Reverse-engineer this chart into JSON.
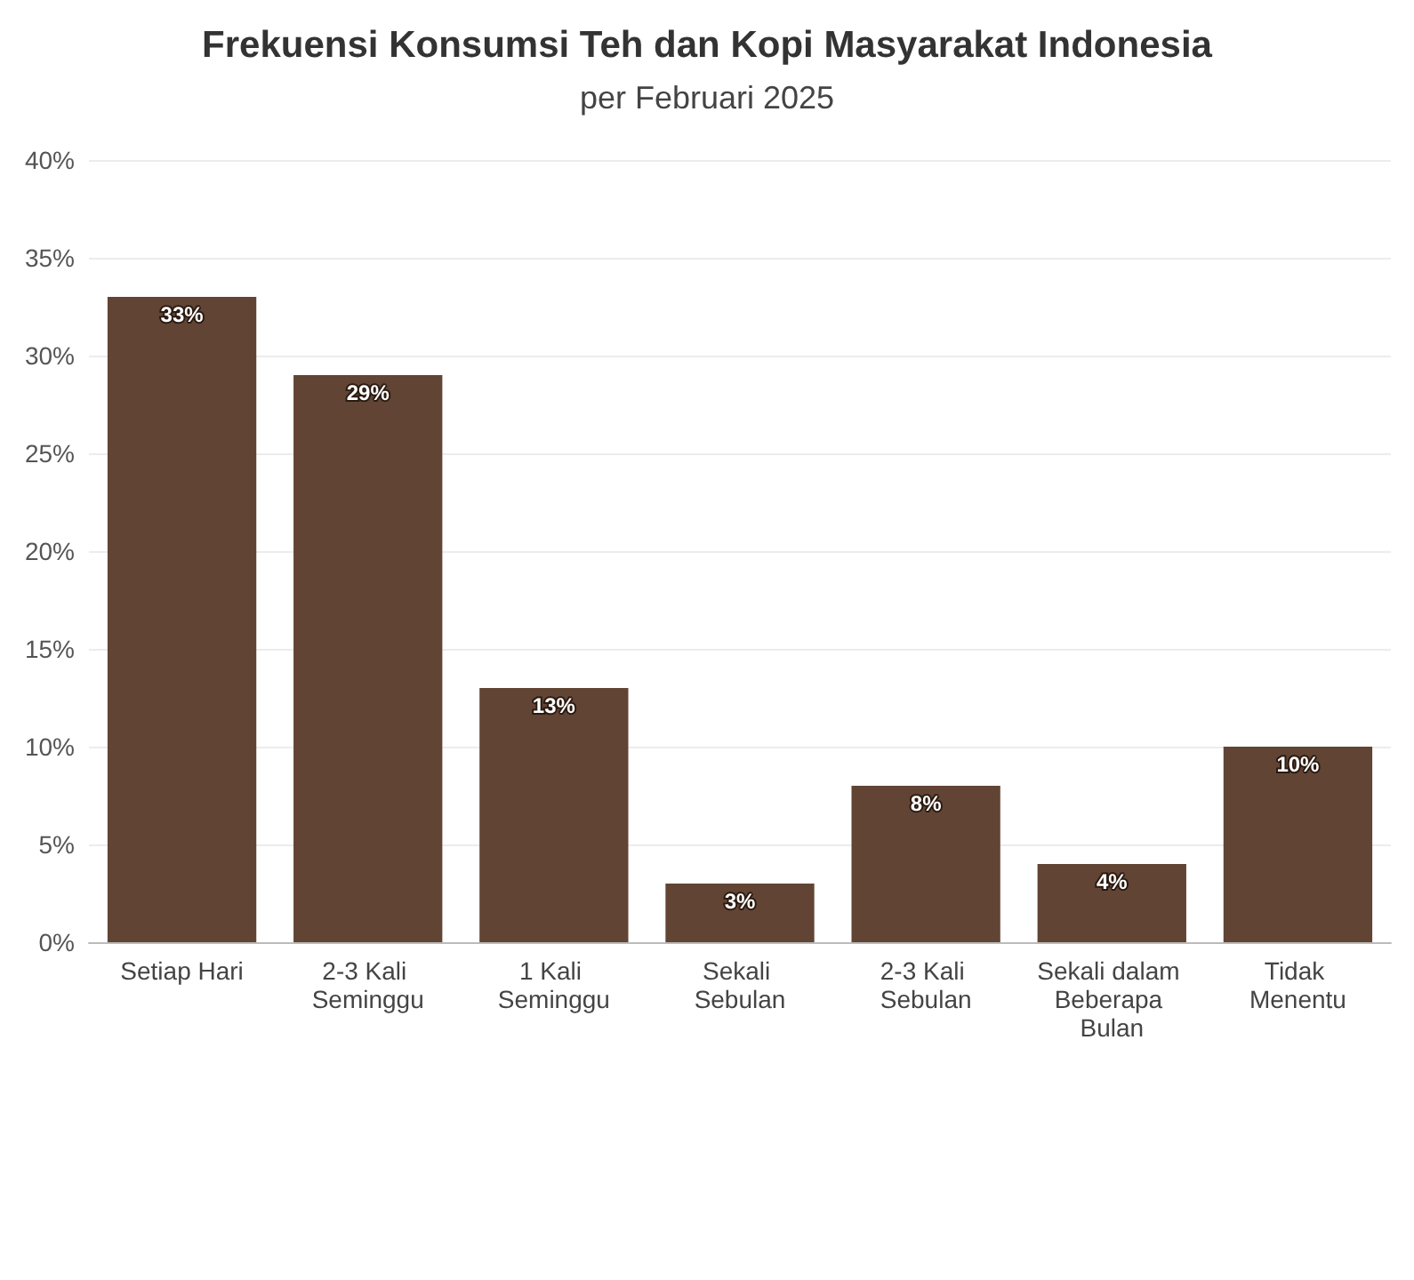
{
  "chart_data": {
    "type": "bar",
    "title": "Frekuensi Konsumsi Teh dan Kopi Masyarakat Indonesia",
    "subtitle": "per Februari 2025",
    "categories": [
      "Setiap Hari",
      "2-3 Kali Seminggu",
      "1 Kali Seminggu",
      "Sekali Sebulan",
      "2-3 Kali Sebulan",
      "Sekali dalam Beberapa Bulan",
      "Tidak Menentu"
    ],
    "values": [
      33,
      29,
      13,
      3,
      8,
      4,
      10
    ],
    "value_labels": [
      "33%",
      "29%",
      "13%",
      "3%",
      "8%",
      "4%",
      "10%"
    ],
    "color": "#614434",
    "ylim": [
      0,
      40
    ],
    "yticks": [
      {
        "value": 0,
        "label": "0%"
      },
      {
        "value": 5,
        "label": "5%"
      },
      {
        "value": 10,
        "label": "10%"
      },
      {
        "value": 15,
        "label": "15%"
      },
      {
        "value": 20,
        "label": "20%"
      },
      {
        "value": 25,
        "label": "25%"
      },
      {
        "value": 30,
        "label": "30%"
      },
      {
        "value": 35,
        "label": "35%"
      },
      {
        "value": 40,
        "label": "40%"
      }
    ],
    "grid": "y"
  }
}
